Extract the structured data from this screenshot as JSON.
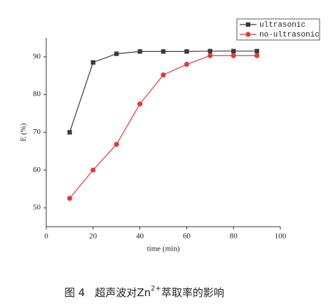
{
  "chart_data": {
    "type": "line",
    "x_label": "time (min)",
    "y_label": "E (%)",
    "x": [
      10,
      20,
      30,
      40,
      50,
      60,
      70,
      80,
      90
    ],
    "series": [
      {
        "name": "ultrasonic",
        "color": "#3a3a3a",
        "marker": "square",
        "values": [
          70,
          88.5,
          90.8,
          91.4,
          91.4,
          91.4,
          91.5,
          91.5,
          91.5
        ]
      },
      {
        "name": "no-ultrasonic",
        "color": "#e03c3c",
        "marker": "circle",
        "values": [
          52.5,
          60,
          66.8,
          77.5,
          85.2,
          88,
          90.3,
          90.3,
          90.3
        ]
      }
    ],
    "xlim": [
      0,
      100
    ],
    "xticks": [
      0,
      20,
      40,
      60,
      80,
      100
    ],
    "ylim": [
      45,
      95
    ],
    "yticks": [
      50,
      60,
      70,
      80,
      90
    ],
    "legend": "upper right",
    "grid": false,
    "caption": {
      "number": "图 4",
      "before": "超声波对Zn",
      "superscript": "2+",
      "after": "萃取率的影响"
    }
  }
}
